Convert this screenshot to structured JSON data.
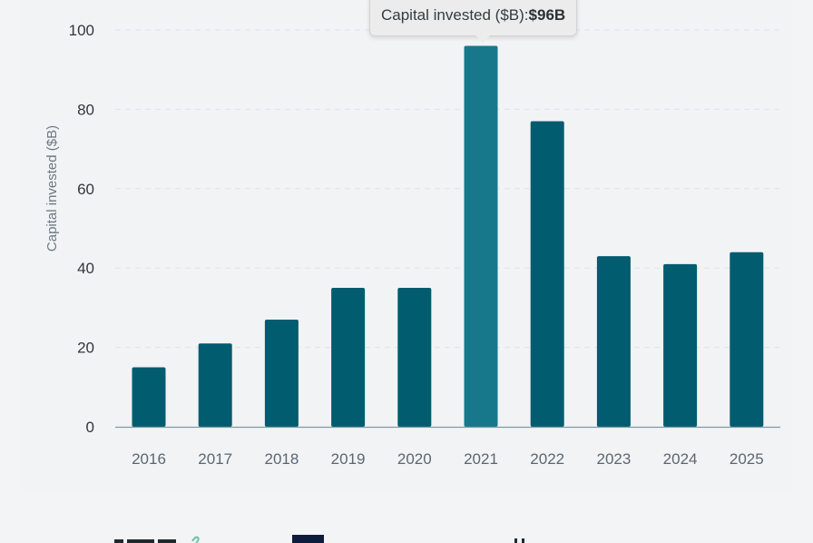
{
  "colors": {
    "background": "#f3f4f6",
    "bar": "#005c6e",
    "bar_highlight": "#17788c",
    "gridline": "#dfe3e6",
    "axis": "#7f9aa3"
  },
  "chart_data": {
    "type": "bar",
    "title": "",
    "xlabel": "",
    "ylabel": "Capital invested ($B)",
    "categories": [
      "2016",
      "2017",
      "2018",
      "2019",
      "2020",
      "2021",
      "2022",
      "2023",
      "2024",
      "2025"
    ],
    "series": [
      {
        "name": "Capital invested ($B)",
        "values": [
          15,
          21,
          27,
          35,
          35,
          96,
          77,
          43,
          41,
          44
        ]
      }
    ],
    "ylim": [
      0,
      100
    ],
    "yticks": [
      "0",
      "20",
      "40",
      "60",
      "80",
      "100"
    ],
    "grid": true,
    "highlighted_category": "2021"
  },
  "tooltip": {
    "label": "Capital invested ($B): ",
    "value": "$96B"
  }
}
